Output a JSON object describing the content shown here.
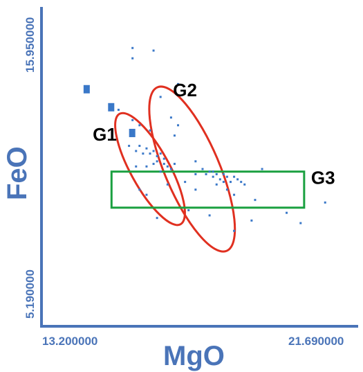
{
  "chart_data": {
    "type": "scatter",
    "title": "",
    "xlabel": "MgO",
    "ylabel": "FeO",
    "xlim": [
      13.2,
      21.69
    ],
    "ylim": [
      5.19,
      15.95
    ],
    "x_tick_labels": [
      "13.200000",
      "21.690000"
    ],
    "y_tick_labels": [
      "5.190000",
      "15.950000"
    ],
    "grid": false,
    "colors": {
      "points": "#3a78c8",
      "axes": "#4a74b8",
      "ellipse": "#e03020",
      "box": "#1aa040",
      "text": "#000000"
    },
    "points": [
      [
        15.8,
        15.3
      ],
      [
        15.8,
        15.7
      ],
      [
        16.4,
        15.6
      ],
      [
        17.1,
        14.3
      ],
      [
        15.4,
        13.3
      ],
      [
        16.6,
        13.8
      ],
      [
        16.9,
        13.0
      ],
      [
        17.1,
        12.7
      ],
      [
        17.0,
        12.3
      ],
      [
        15.8,
        12.9
      ],
      [
        16.0,
        12.7
      ],
      [
        16.3,
        12.5
      ],
      [
        15.7,
        11.9
      ],
      [
        15.9,
        11.7
      ],
      [
        16.0,
        11.9
      ],
      [
        16.1,
        11.6
      ],
      [
        16.2,
        11.8
      ],
      [
        16.3,
        11.6
      ],
      [
        16.4,
        11.7
      ],
      [
        16.5,
        11.5
      ],
      [
        16.5,
        11.3
      ],
      [
        16.6,
        11.6
      ],
      [
        16.7,
        11.2
      ],
      [
        16.7,
        11.4
      ],
      [
        16.8,
        11.1
      ],
      [
        16.9,
        11.0
      ],
      [
        16.6,
        10.9
      ],
      [
        17.0,
        11.2
      ],
      [
        16.4,
        11.2
      ],
      [
        16.2,
        11.1
      ],
      [
        15.9,
        11.1
      ],
      [
        17.6,
        11.3
      ],
      [
        17.8,
        11.0
      ],
      [
        17.6,
        10.8
      ],
      [
        17.9,
        10.8
      ],
      [
        18.0,
        10.9
      ],
      [
        18.1,
        10.7
      ],
      [
        18.2,
        10.8
      ],
      [
        18.3,
        10.6
      ],
      [
        18.4,
        10.8
      ],
      [
        18.5,
        10.7
      ],
      [
        18.6,
        10.5
      ],
      [
        18.2,
        10.4
      ],
      [
        18.7,
        10.7
      ],
      [
        18.8,
        10.6
      ],
      [
        18.9,
        10.5
      ],
      [
        19.0,
        10.4
      ],
      [
        18.1,
        10.9
      ],
      [
        18.4,
        10.5
      ],
      [
        16.0,
        10.2
      ],
      [
        16.8,
        10.4
      ],
      [
        17.3,
        10.5
      ],
      [
        16.2,
        10.0
      ],
      [
        17.6,
        10.2
      ],
      [
        18.5,
        10.2
      ],
      [
        18.7,
        10.0
      ],
      [
        19.5,
        11.0
      ],
      [
        19.3,
        9.8
      ],
      [
        20.2,
        9.3
      ],
      [
        17.4,
        9.4
      ],
      [
        18.0,
        9.2
      ],
      [
        19.2,
        9.0
      ],
      [
        16.5,
        9.1
      ],
      [
        18.7,
        8.6
      ],
      [
        20.6,
        8.9
      ],
      [
        21.3,
        9.7
      ]
    ],
    "markers": [
      [
        14.5,
        14.1
      ],
      [
        15.2,
        13.4
      ],
      [
        15.8,
        12.4
      ]
    ],
    "groups": [
      {
        "label": "G1",
        "shape": "ellipse",
        "center": [
          16.3,
          11.0
        ],
        "rx": 0.55,
        "ry": 2.45,
        "angle_deg": -29
      },
      {
        "label": "G2",
        "shape": "ellipse",
        "center": [
          17.5,
          11.0
        ],
        "rx": 0.78,
        "ry": 3.45,
        "angle_deg": -23
      },
      {
        "label": "G3",
        "shape": "rectangle",
        "x_range": [
          15.2,
          20.7
        ],
        "y_range": [
          9.5,
          10.9
        ]
      }
    ]
  }
}
